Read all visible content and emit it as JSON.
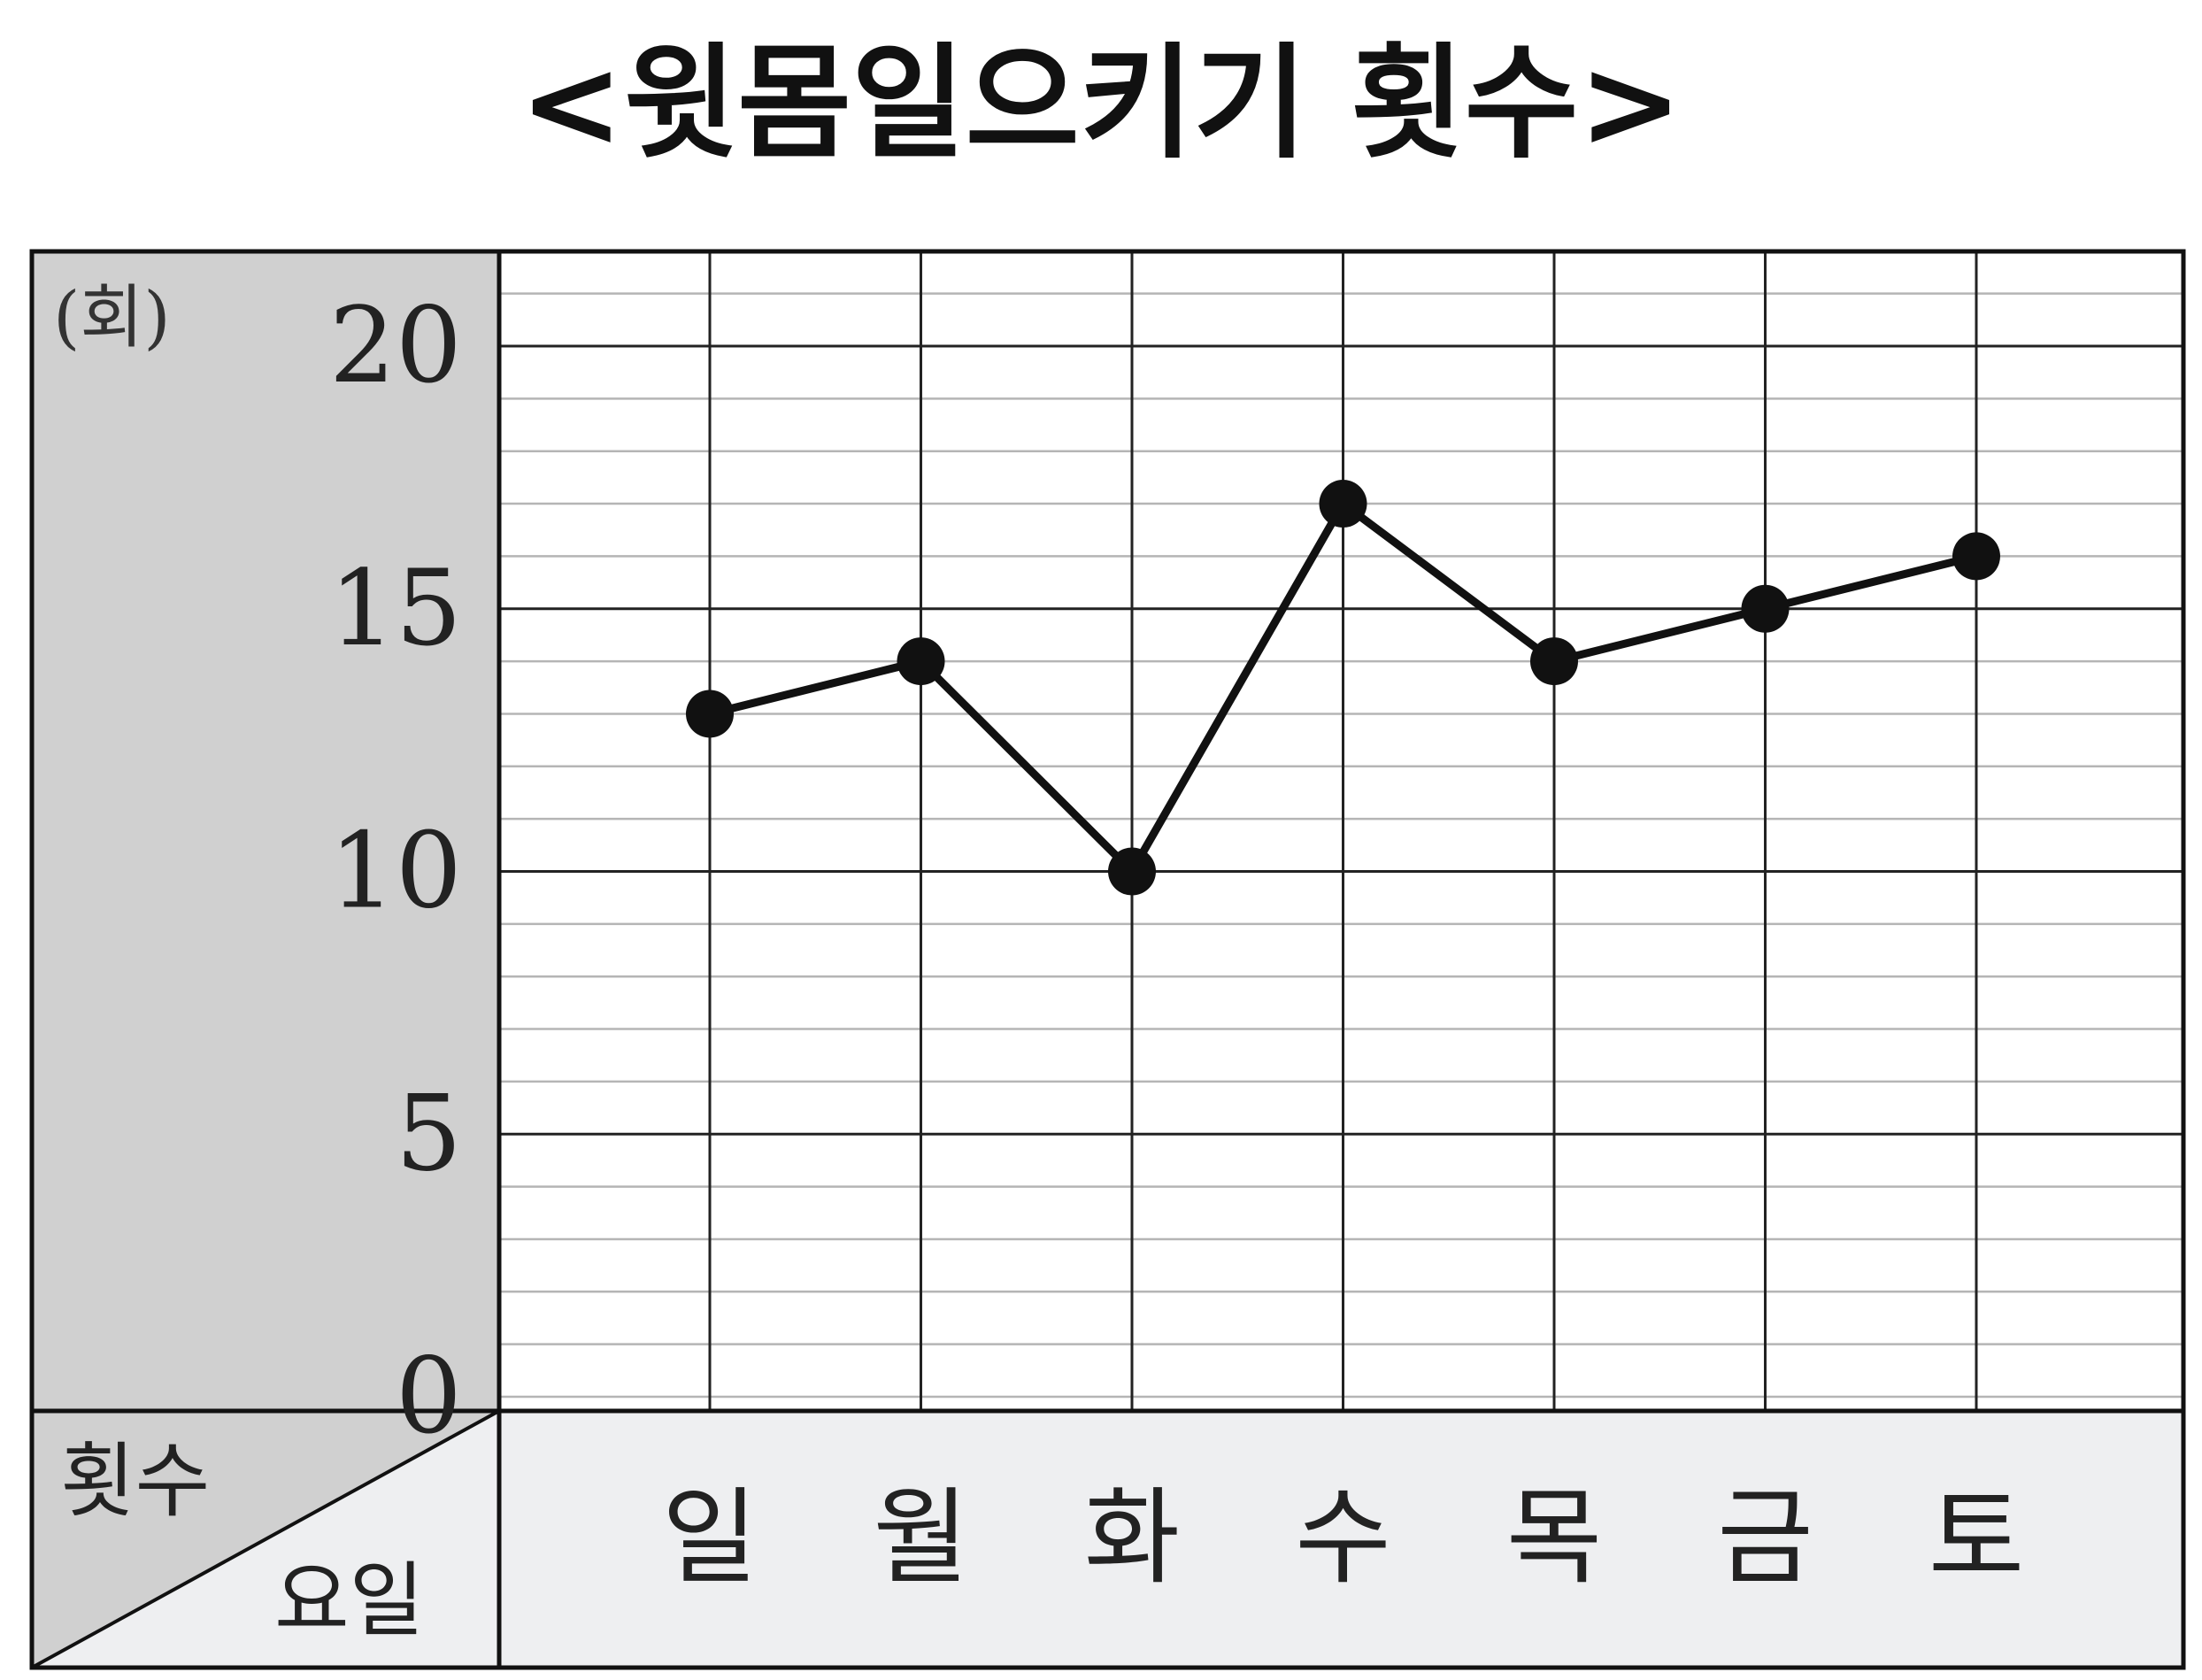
{
  "chart_data": {
    "type": "line",
    "title": "<윗몸일으키기 횟수>",
    "ylabel": "(회)",
    "corner_top_label": "횟수",
    "corner_bottom_label": "요일",
    "categories": [
      "일",
      "월",
      "화",
      "수",
      "목",
      "금",
      "토"
    ],
    "series": [
      {
        "values": [
          13,
          14,
          10,
          17,
          14,
          15,
          16
        ]
      }
    ],
    "yticks": [
      "0",
      "5",
      "10",
      "15",
      "20"
    ],
    "ylim": [
      0,
      20
    ],
    "minor_step": 1,
    "major_step": 5,
    "grid": true,
    "legend": "none",
    "colors": {
      "line": "#111111",
      "axis_panel": "#d0d0d0",
      "category_panel": "#eeeff1",
      "major_grid": "#222222",
      "minor_grid": "#b5b5b5"
    }
  }
}
